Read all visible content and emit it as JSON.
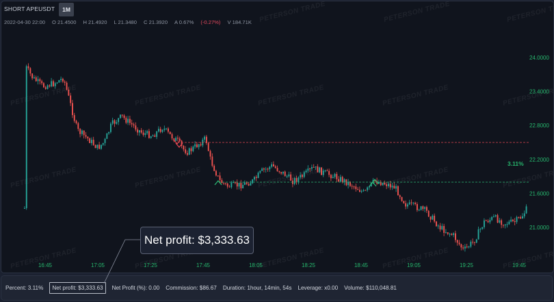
{
  "header": {
    "pair_label": "SHORT APEUSDT",
    "timeframe": "1M"
  },
  "ohlc": {
    "date": "2022-04-30 22:00",
    "open": "O 21.4500",
    "high": "H 21.4920",
    "low": "L 21.3480",
    "close": "C 21.3920",
    "amplitude": "A 0.67%",
    "change": "(-0.27%)",
    "volume": "V 184.71K"
  },
  "watermark_text": "PETERSON TRADE",
  "chart": {
    "price_ticks": [
      "24.0000",
      "23.4000",
      "22.8000",
      "22.2000",
      "21.6000",
      "21.0000"
    ],
    "time_ticks": [
      "16:45",
      "17:05",
      "17:25",
      "17:45",
      "18:05",
      "18:25",
      "18:45",
      "19:05",
      "19:25",
      "19:45"
    ],
    "trade_pct_label": "3.11%",
    "colors": {
      "up": "#26a69a",
      "down": "#ef5350",
      "entry_line": "#e04650",
      "exit_line": "#2bb673",
      "tick_text": "#27b86e"
    }
  },
  "callout": {
    "text": "Net profit: $3,333.63"
  },
  "stats": {
    "percent": "Percent: 3.11%",
    "net_profit": "Net profit: $3,333.63",
    "net_profit_pct": "Net Profit (%): 0.00",
    "commission": "Commission: $86.67",
    "duration": "Duration: 1hour, 14min, 54s",
    "leverage": "Leverage: x0.00",
    "volume": "Volume: $110,048.81"
  }
}
